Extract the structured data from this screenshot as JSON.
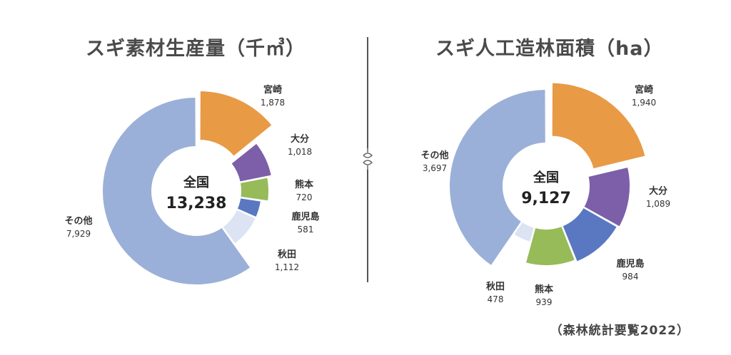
{
  "chart_data": [
    {
      "type": "pie",
      "title": "スギ素材生産量（千㎥）",
      "center_label": "全国",
      "center_value": "13,238",
      "categories": [
        "宮崎",
        "大分",
        "熊本",
        "鹿児島",
        "秋田",
        "その他"
      ],
      "values": [
        1878,
        1018,
        720,
        581,
        1112,
        7929
      ],
      "value_labels": [
        "1,878",
        "1,018",
        "720",
        "581",
        "1,112",
        "7,929"
      ],
      "colors": [
        "#E89A45",
        "#7C5FA8",
        "#97BB58",
        "#5A78C2",
        "#DCE3F2",
        "#9BB0D8"
      ],
      "highlighted": "宮崎"
    },
    {
      "type": "pie",
      "title": "スギ人工造林面積（ha）",
      "center_label": "全国",
      "center_value": "9,127",
      "categories": [
        "宮崎",
        "大分",
        "鹿児島",
        "熊本",
        "秋田",
        "その他"
      ],
      "values": [
        1940,
        1089,
        984,
        939,
        478,
        3697
      ],
      "value_labels": [
        "1,940",
        "1,089",
        "984",
        "939",
        "478",
        "3,697"
      ],
      "colors": [
        "#E89A45",
        "#7C5FA8",
        "#5A78C2",
        "#97BB58",
        "#DCE3F2",
        "#9BB0D8"
      ],
      "highlighted": "宮崎"
    }
  ],
  "source": "（森林統計要覧2022）"
}
